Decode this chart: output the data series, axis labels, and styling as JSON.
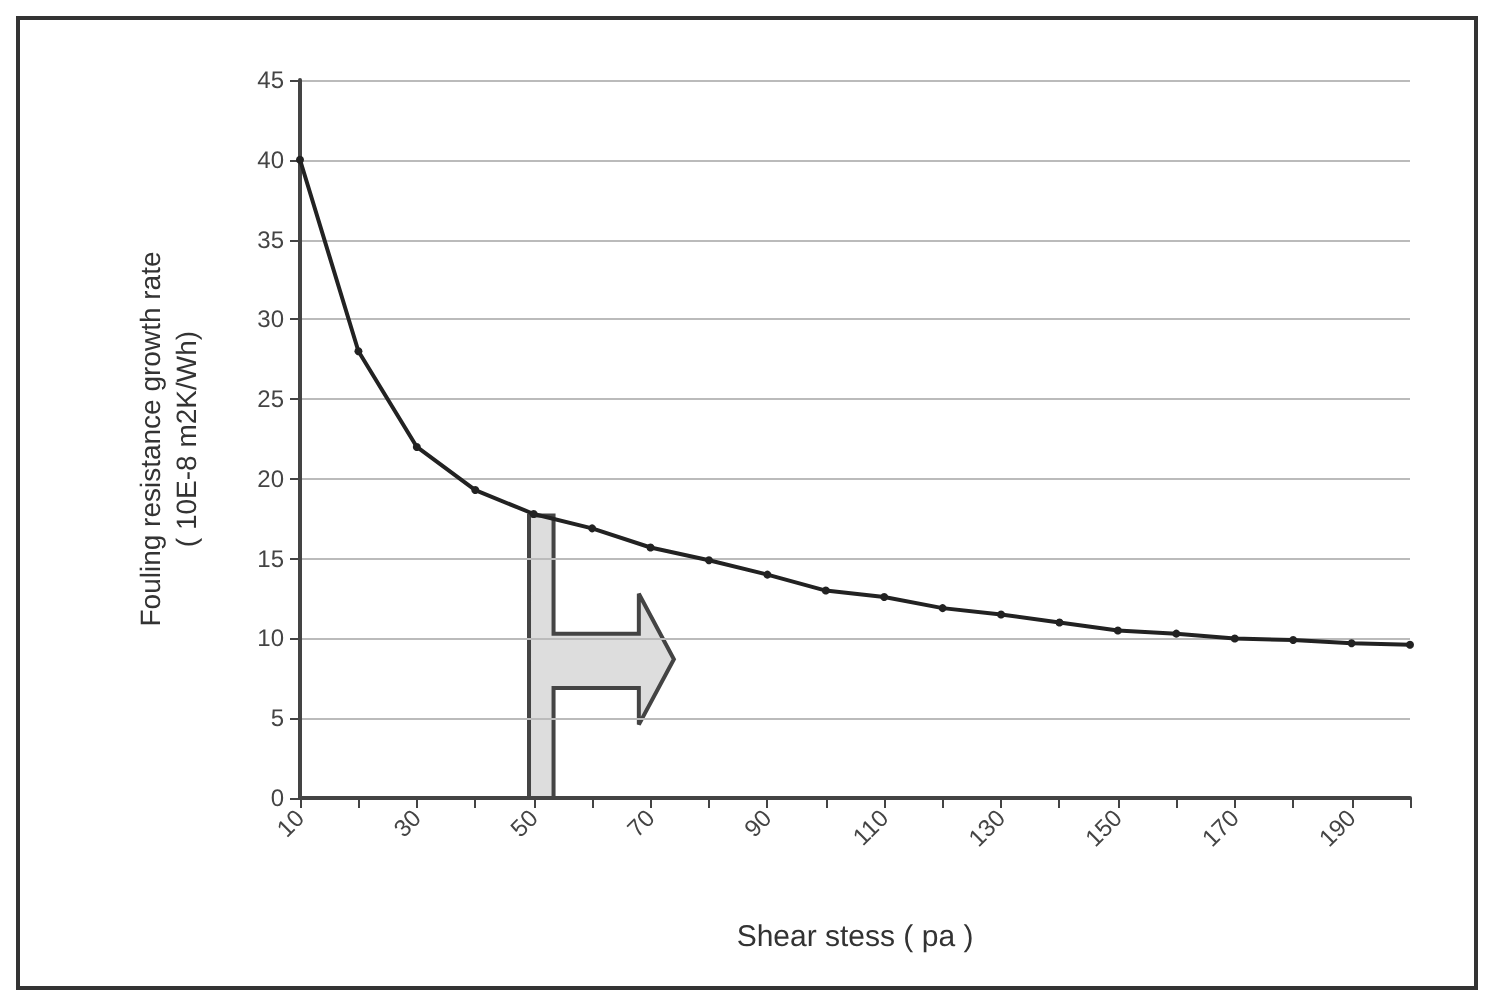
{
  "chart_data": {
    "type": "line",
    "xlabel": "Shear stess ( pa )",
    "ylabel": "Fouling resistance growth rate\n( 10E-8 m2K/Wh)",
    "x": [
      10,
      20,
      30,
      40,
      50,
      60,
      70,
      80,
      90,
      100,
      110,
      120,
      130,
      140,
      150,
      160,
      170,
      180,
      190,
      200
    ],
    "series": [
      {
        "color": "#222222",
        "values": [
          40,
          28,
          22,
          19.3,
          17.8,
          16.9,
          15.7,
          14.9,
          14,
          13,
          12.6,
          11.9,
          11.5,
          11,
          10.5,
          10.3,
          10,
          9.9,
          9.7,
          9.6
        ]
      }
    ],
    "xlim": [
      10,
      200
    ],
    "xticks": [
      10,
      {
        "value": 20,
        "label": null
      },
      30,
      {
        "value": 40,
        "label": null
      },
      50,
      {
        "value": 60,
        "label": null
      },
      70,
      {
        "value": 80,
        "label": null
      },
      90,
      {
        "value": 100,
        "label": null
      },
      110,
      {
        "value": 120,
        "label": null
      },
      130,
      {
        "value": 140,
        "label": null
      },
      150,
      {
        "value": 160,
        "label": null
      },
      170,
      {
        "value": 180,
        "label": null
      },
      190,
      {
        "value": 200,
        "label": null
      }
    ],
    "ylim": [
      0,
      45
    ],
    "yticks": [
      0,
      5,
      10,
      15,
      20,
      25,
      30,
      35,
      40,
      45
    ],
    "grid": "y",
    "marker": "circle",
    "line_style": "solid"
  }
}
